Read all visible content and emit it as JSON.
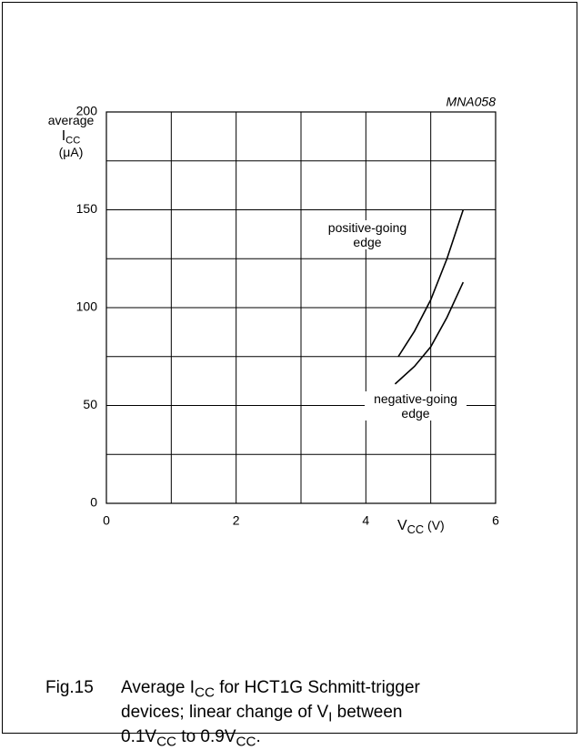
{
  "chart_data": {
    "type": "line",
    "figure_code": "MNA058",
    "ylabel": [
      {
        "text": "average"
      },
      {
        "text": "I",
        "sub": "CC"
      },
      {
        "text": "(μA)"
      }
    ],
    "xlabel": {
      "text": "V",
      "sub": "CC",
      "after": " (V)"
    },
    "xlim": [
      0,
      6
    ],
    "xticks": [
      0,
      2,
      4,
      6
    ],
    "ylim": [
      0,
      200
    ],
    "yticks": [
      0,
      50,
      100,
      150,
      200
    ],
    "grid": true,
    "minor_grid": true,
    "series": [
      {
        "name": "positive-going edge",
        "color": "#000000",
        "x": [
          4.5,
          4.75,
          5,
          5.25,
          5.5
        ],
        "values": [
          75,
          88,
          104,
          125,
          150
        ]
      },
      {
        "name": "negative-going edge",
        "color": "#000000",
        "x": [
          4.45,
          4.75,
          5,
          5.25,
          5.5
        ],
        "values": [
          61,
          70,
          80,
          95,
          113
        ]
      }
    ],
    "caption": {
      "label": "Fig.15",
      "parts": [
        {
          "text": "Average I"
        },
        {
          "sub": "CC"
        },
        {
          "text": " for HCT1G Schmitt-trigger devices; linear change of V"
        },
        {
          "sub": "I"
        },
        {
          "text": " between 0.1V"
        },
        {
          "sub": "CC"
        },
        {
          "text": " to 0.9V"
        },
        {
          "sub": "CC"
        },
        {
          "text": "."
        }
      ]
    }
  }
}
